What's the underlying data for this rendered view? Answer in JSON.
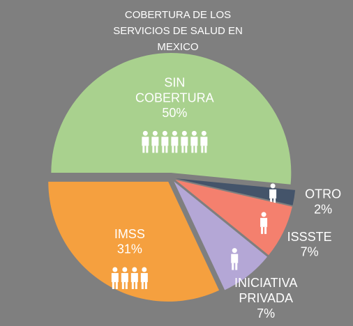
{
  "chart_data": {
    "type": "pie",
    "title": "COBERTURA DE LOS SERVICIOS DE SALUD EN MEXICO",
    "categories": [
      "SIN COBERTURA",
      "OTRO",
      "ISSSTE",
      "INICIATIVA PRIVADA",
      "IMSS"
    ],
    "values": [
      50,
      2,
      7,
      7,
      31
    ],
    "value_labels": [
      "50%",
      "2%",
      "7%",
      "7%",
      "31%"
    ],
    "colors": [
      "#a9d18e",
      "#44546a",
      "#f4806e",
      "#b4a7d6",
      "#f5a03f"
    ]
  }
}
